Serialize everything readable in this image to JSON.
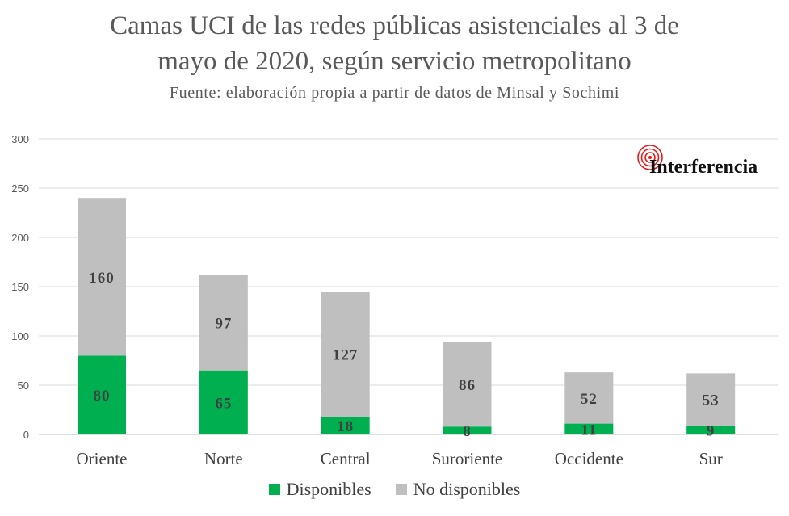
{
  "chart_data": {
    "type": "bar",
    "stacked": true,
    "title_lines": [
      "Camas UCI de las redes públicas asistenciales al 3 de",
      "mayo de 2020, según servicio metropolitano"
    ],
    "subtitle": "Fuente: elaboración propia a partir de datos de Minsal y Sochimi",
    "categories": [
      "Oriente",
      "Norte",
      "Central",
      "Suroriente",
      "Occidente",
      "Sur"
    ],
    "series": [
      {
        "name": "Disponibles",
        "values": [
          80,
          65,
          18,
          8,
          11,
          9
        ],
        "color": "#00b050"
      },
      {
        "name": "No disponibles",
        "values": [
          160,
          97,
          127,
          86,
          52,
          53
        ],
        "color": "#bfbfbf"
      }
    ],
    "y_ticks": [
      0,
      50,
      100,
      150,
      200,
      250,
      300
    ],
    "ylim": [
      0,
      300
    ],
    "grid": true,
    "legend_position": "bottom",
    "brand": "Interferencia"
  }
}
